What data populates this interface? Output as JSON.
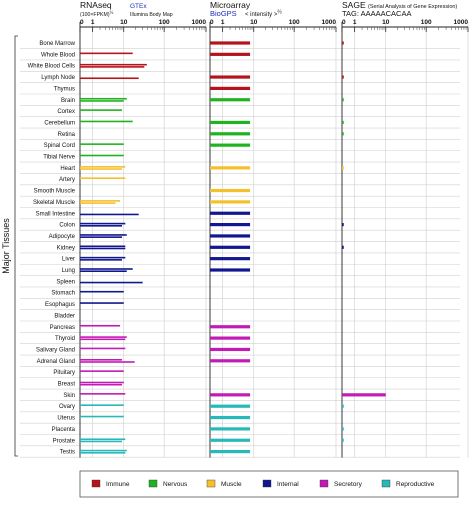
{
  "side_label": "Major Tissues",
  "tissues": [
    "Bone Marrow",
    "Whole Blood",
    "White Blood Cells",
    "Lymph Node",
    "Thymus",
    "Brain",
    "Cortex",
    "Cerebellum",
    "Retina",
    "Spinal Cord",
    "Tibial Nerve",
    "Heart",
    "Artery",
    "Smooth Muscle",
    "Skeletal Muscle",
    "Small Intestine",
    "Colon",
    "Adipocyte",
    "Kidney",
    "Liver",
    "Lung",
    "Spleen",
    "Stomach",
    "Esophagus",
    "Bladder",
    "Pancreas",
    "Thyroid",
    "Salivary Gland",
    "Adrenal Gland",
    "Pituitary",
    "Breast",
    "Skin",
    "Ovary",
    "Uterus",
    "Placenta",
    "Prostate",
    "Testis"
  ],
  "groups_per_tissue": [
    "Immune",
    "Immune",
    "Immune",
    "Immune",
    "Immune",
    "Nervous",
    "Nervous",
    "Nervous",
    "Nervous",
    "Nervous",
    "Nervous",
    "Muscle",
    "Muscle",
    "Muscle",
    "Muscle",
    "Internal",
    "Internal",
    "Internal",
    "Internal",
    "Internal",
    "Internal",
    "Internal",
    "Internal",
    "Internal",
    "Internal",
    "Secretory",
    "Secretory",
    "Secretory",
    "Secretory",
    "Secretory",
    "Secretory",
    "Secretory",
    "Reproductive",
    "Reproductive",
    "Reproductive",
    "Reproductive",
    "Reproductive"
  ],
  "panels": {
    "rnaseq": {
      "title": "RNAseq",
      "units": "(100×FPKM)",
      "units_exp": "½",
      "sources": [
        "GTEx",
        "Illumina Body Map"
      ],
      "ticks": [
        "0",
        "1",
        "10",
        "100",
        "1000"
      ]
    },
    "microarray": {
      "title": "Microarray",
      "source": "BioGPS",
      "units": "< intensity >",
      "units_exp": "⅔",
      "ticks": [
        "0",
        "1",
        "10",
        "100",
        "1000"
      ]
    },
    "sage": {
      "title": "SAGE",
      "subtitle": "(Serial Analysis of Gene Expression)",
      "tag": "TAG: AAAAACACAA",
      "ticks": [
        "0",
        "1",
        "10",
        "100",
        "1000"
      ]
    }
  },
  "legend": [
    {
      "label": "Immune",
      "color": "#b5141c"
    },
    {
      "label": "Nervous",
      "color": "#1fb41f"
    },
    {
      "label": "Muscle",
      "color": "#f5c02a"
    },
    {
      "label": "Internal",
      "color": "#10178f"
    },
    {
      "label": "Secretory",
      "color": "#c21ab5"
    },
    {
      "label": "Reproductive",
      "color": "#28b8b8"
    }
  ],
  "chart_data": [
    {
      "type": "bar",
      "title": "RNAseq",
      "axis_scale": "log (value plus 1)",
      "xlim": [
        0,
        1000
      ],
      "grid": true,
      "categories": [
        "Bone Marrow",
        "Whole Blood",
        "White Blood Cells",
        "Lymph Node",
        "Thymus",
        "Brain",
        "Cortex",
        "Cerebellum",
        "Retina",
        "Spinal Cord",
        "Tibial Nerve",
        "Heart",
        "Artery",
        "Smooth Muscle",
        "Skeletal Muscle",
        "Small Intestine",
        "Colon",
        "Adipocyte",
        "Kidney",
        "Liver",
        "Lung",
        "Spleen",
        "Stomach",
        "Esophagus",
        "Bladder",
        "Pancreas",
        "Thyroid",
        "Salivary Gland",
        "Adrenal Gland",
        "Pituitary",
        "Breast",
        "Skin",
        "Ovary",
        "Uterus",
        "Placenta",
        "Prostate",
        "Testis"
      ],
      "series": [
        {
          "name": "GTEx",
          "values": [
            null,
            17,
            38,
            null,
            null,
            12,
            9,
            17,
            null,
            10,
            10,
            11,
            11,
            null,
            8,
            null,
            11,
            12,
            11,
            11,
            17,
            null,
            10,
            10,
            null,
            8,
            12,
            11,
            9,
            10,
            10,
            11,
            10,
            10,
            null,
            11,
            12
          ]
        },
        {
          "name": "Illumina Body Map",
          "values": [
            null,
            null,
            33,
            24,
            null,
            10,
            null,
            null,
            null,
            null,
            null,
            9,
            null,
            null,
            6,
            24,
            9,
            9,
            11,
            9,
            12,
            30,
            null,
            null,
            null,
            null,
            11,
            null,
            19,
            null,
            9,
            null,
            null,
            null,
            null,
            9,
            11
          ]
        }
      ]
    },
    {
      "type": "bar",
      "title": "Microarray",
      "axis_scale": "log (value plus 1)",
      "xlim": [
        0,
        1000
      ],
      "grid": true,
      "categories": [
        "Bone Marrow",
        "Whole Blood",
        "White Blood Cells",
        "Lymph Node",
        "Thymus",
        "Brain",
        "Cortex",
        "Cerebellum",
        "Retina",
        "Spinal Cord",
        "Tibial Nerve",
        "Heart",
        "Artery",
        "Smooth Muscle",
        "Skeletal Muscle",
        "Small Intestine",
        "Colon",
        "Adipocyte",
        "Kidney",
        "Liver",
        "Lung",
        "Spleen",
        "Stomach",
        "Esophagus",
        "Bladder",
        "Pancreas",
        "Thyroid",
        "Salivary Gland",
        "Adrenal Gland",
        "Pituitary",
        "Breast",
        "Skin",
        "Ovary",
        "Uterus",
        "Placenta",
        "Prostate",
        "Testis"
      ],
      "series": [
        {
          "name": "BioGPS",
          "values": [
            8,
            8,
            null,
            8,
            8,
            8,
            null,
            8,
            8,
            8,
            null,
            8,
            null,
            8,
            8,
            8,
            8,
            8,
            8,
            8,
            8,
            null,
            null,
            null,
            null,
            8,
            8,
            8,
            8,
            null,
            null,
            8,
            8,
            8,
            8,
            8,
            8
          ]
        }
      ]
    },
    {
      "type": "bar",
      "title": "SAGE",
      "axis_scale": "log (value plus 1)",
      "xlim": [
        0,
        1000
      ],
      "grid": true,
      "categories": [
        "Bone Marrow",
        "Whole Blood",
        "White Blood Cells",
        "Lymph Node",
        "Thymus",
        "Brain",
        "Cortex",
        "Cerebellum",
        "Retina",
        "Spinal Cord",
        "Tibial Nerve",
        "Heart",
        "Artery",
        "Smooth Muscle",
        "Skeletal Muscle",
        "Small Intestine",
        "Colon",
        "Adipocyte",
        "Kidney",
        "Liver",
        "Lung",
        "Spleen",
        "Stomach",
        "Esophagus",
        "Bladder",
        "Pancreas",
        "Thyroid",
        "Salivary Gland",
        "Adrenal Gland",
        "Pituitary",
        "Breast",
        "Skin",
        "Ovary",
        "Uterus",
        "Placenta",
        "Prostate",
        "Testis"
      ],
      "series": [
        {
          "name": "TAG: AAAAACACAA",
          "values": [
            0.1,
            null,
            null,
            0.1,
            null,
            0.1,
            null,
            0.1,
            0.1,
            null,
            null,
            0.1,
            null,
            null,
            null,
            null,
            0.1,
            null,
            0.1,
            null,
            null,
            null,
            null,
            null,
            null,
            null,
            null,
            null,
            null,
            null,
            null,
            10,
            0.1,
            null,
            0.1,
            0.1,
            null
          ]
        }
      ]
    }
  ]
}
